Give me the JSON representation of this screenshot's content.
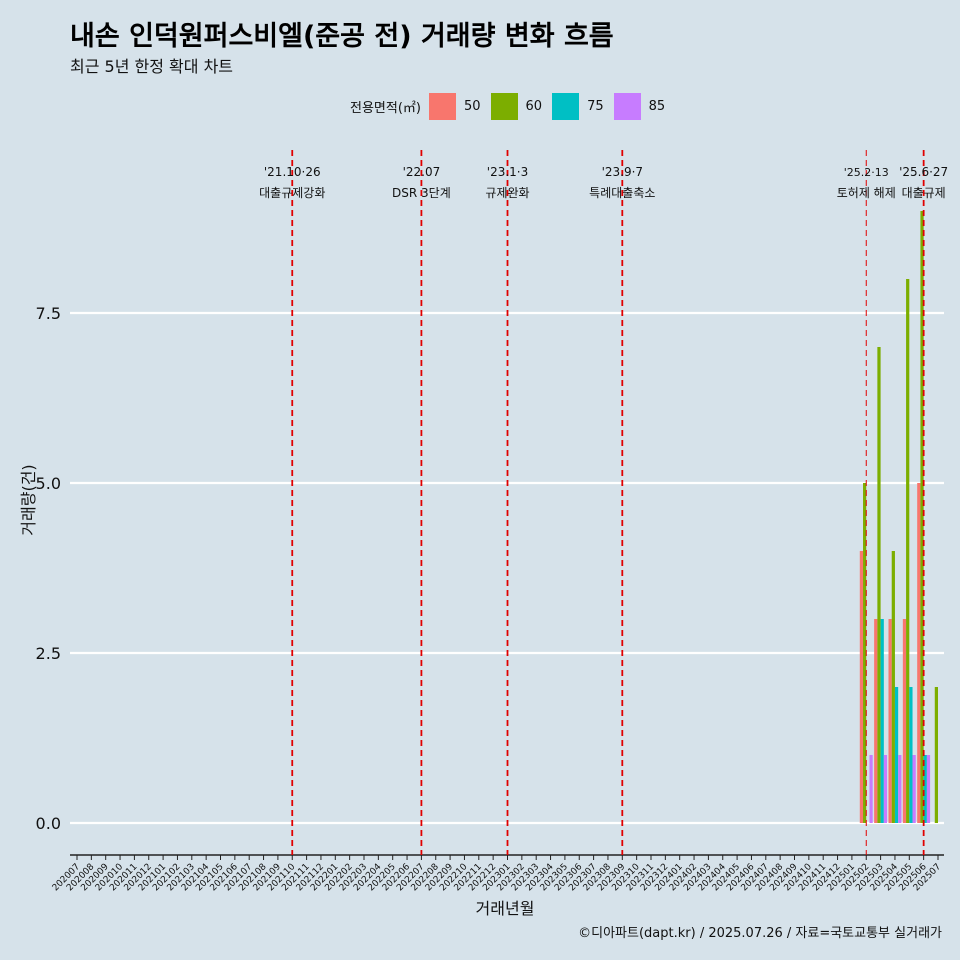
{
  "title": "내손 인덕원퍼스비엘(준공 전) 거래량 변화 흐름",
  "subtitle": "최근 5년 한정 확대 차트",
  "caption": "©디아파트(dapt.kr) / 2025.07.26 / 자료=국토교통부 실거래가",
  "legend": {
    "title": "전용면적(㎡)",
    "items": [
      {
        "label": "50",
        "color": "#f8766d"
      },
      {
        "label": "60",
        "color": "#7cae00"
      },
      {
        "label": "75",
        "color": "#00bfc4"
      },
      {
        "label": "85",
        "color": "#c77cff"
      }
    ]
  },
  "chart_data": {
    "type": "bar",
    "xlabel": "거래년월",
    "ylabel": "거래량(건)",
    "ylim": [
      0,
      9.5
    ],
    "y_ticks": [
      "0.0",
      "2.5",
      "5.0",
      "7.5"
    ],
    "grid": true,
    "legend_position": "top",
    "categories": [
      "202007",
      "202008",
      "202009",
      "202010",
      "202011",
      "202012",
      "202101",
      "202102",
      "202103",
      "202104",
      "202105",
      "202106",
      "202107",
      "202108",
      "202109",
      "202110",
      "202111",
      "202112",
      "202201",
      "202202",
      "202203",
      "202204",
      "202205",
      "202206",
      "202207",
      "202208",
      "202209",
      "202210",
      "202211",
      "202212",
      "202301",
      "202302",
      "202303",
      "202304",
      "202305",
      "202306",
      "202307",
      "202308",
      "202309",
      "202310",
      "202311",
      "202312",
      "202401",
      "202402",
      "202403",
      "202404",
      "202405",
      "202406",
      "202407",
      "202408",
      "202409",
      "202410",
      "202411",
      "202412",
      "202501",
      "202502",
      "202503",
      "202504",
      "202505",
      "202506",
      "202507"
    ],
    "series": [
      {
        "name": "50",
        "color": "#f8766d",
        "points": [
          {
            "x": "202502",
            "y": 4
          },
          {
            "x": "202503",
            "y": 3
          },
          {
            "x": "202504",
            "y": 3
          },
          {
            "x": "202505",
            "y": 3
          },
          {
            "x": "202506",
            "y": 5
          }
        ]
      },
      {
        "name": "60",
        "color": "#7cae00",
        "points": [
          {
            "x": "202502",
            "y": 5
          },
          {
            "x": "202503",
            "y": 7
          },
          {
            "x": "202504",
            "y": 4
          },
          {
            "x": "202505",
            "y": 8
          },
          {
            "x": "202506",
            "y": 9
          },
          {
            "x": "202507",
            "y": 2
          }
        ]
      },
      {
        "name": "75",
        "color": "#00bfc4",
        "points": [
          {
            "x": "202503",
            "y": 3
          },
          {
            "x": "202504",
            "y": 2
          },
          {
            "x": "202505",
            "y": 2
          },
          {
            "x": "202506",
            "y": 1
          }
        ]
      },
      {
        "name": "85",
        "color": "#c77cff",
        "points": [
          {
            "x": "202502",
            "y": 1
          },
          {
            "x": "202503",
            "y": 1
          },
          {
            "x": "202504",
            "y": 1
          },
          {
            "x": "202505",
            "y": 1
          },
          {
            "x": "202506",
            "y": 1
          }
        ]
      }
    ],
    "annotations": [
      {
        "x": "202110",
        "label1": "'21.10·26",
        "label2": "대출규제강화",
        "style": "thick"
      },
      {
        "x": "202207",
        "label1": "'22.07",
        "label2": "DSR 3단계",
        "style": "thick"
      },
      {
        "x": "202301",
        "label1": "'23.1·3",
        "label2": "규제완화",
        "style": "thick"
      },
      {
        "x": "202309",
        "label1": "'23.9·7",
        "label2": "특례대출축소",
        "style": "thick"
      },
      {
        "x": "202502",
        "label1": "'25.2·13",
        "label2": "토허제 해제",
        "style": "thin"
      },
      {
        "x": "202506",
        "label1": "'25.6·27",
        "label2": "대출규제",
        "style": "thick"
      }
    ]
  }
}
